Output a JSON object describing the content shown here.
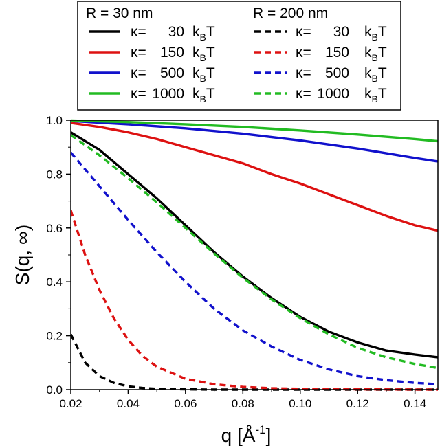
{
  "chart_data": {
    "type": "line",
    "xlabel": "q [Å",
    "xlabel_sup": "-1",
    "xlabel_close": "]",
    "ylabel": "S(q, ∞)",
    "xlim": [
      0.02,
      0.148
    ],
    "ylim": [
      0.0,
      1.0
    ],
    "xticks": [
      0.02,
      0.04,
      0.06,
      0.08,
      0.1,
      0.12,
      0.14
    ],
    "xtick_labels": [
      "0.02",
      "0.04",
      "0.06",
      "0.08",
      "0.10",
      "0.12",
      "0.14"
    ],
    "yticks": [
      0.0,
      0.2,
      0.4,
      0.6,
      0.8,
      1.0
    ],
    "ytick_labels": [
      "0.0",
      "0.2",
      "0.4",
      "0.6",
      "0.8",
      "1.0"
    ],
    "legend": {
      "placement": "top",
      "groups": [
        {
          "title": "R = 30 nm",
          "style": "solid"
        },
        {
          "title": "R = 200 nm",
          "style": "dashed"
        }
      ],
      "rows": [
        {
          "prefix": "κ=",
          "value": "30",
          "unit_k": "k",
          "unit_sub": "B",
          "unit_t": "T"
        },
        {
          "prefix": "κ=",
          "value": "150",
          "unit_k": "k",
          "unit_sub": "B",
          "unit_t": "T"
        },
        {
          "prefix": "κ=",
          "value": "500",
          "unit_k": "k",
          "unit_sub": "B",
          "unit_t": "T"
        },
        {
          "prefix": "κ=",
          "value": "1000",
          "unit_k": "k",
          "unit_sub": "B",
          "unit_t": "T"
        }
      ]
    },
    "series": [
      {
        "R": "30 nm",
        "kappa": "30",
        "color": "#000000",
        "dash": "solid",
        "x": [
          0.02,
          0.03,
          0.04,
          0.05,
          0.06,
          0.07,
          0.08,
          0.09,
          0.1,
          0.11,
          0.12,
          0.13,
          0.14,
          0.148
        ],
        "y": [
          0.955,
          0.89,
          0.8,
          0.71,
          0.61,
          0.51,
          0.42,
          0.34,
          0.27,
          0.215,
          0.175,
          0.145,
          0.13,
          0.12
        ]
      },
      {
        "R": "30 nm",
        "kappa": "150",
        "color": "#dd1111",
        "dash": "solid",
        "x": [
          0.02,
          0.03,
          0.04,
          0.05,
          0.06,
          0.07,
          0.08,
          0.09,
          0.1,
          0.11,
          0.12,
          0.13,
          0.14,
          0.148
        ],
        "y": [
          0.99,
          0.975,
          0.955,
          0.93,
          0.9,
          0.87,
          0.84,
          0.8,
          0.765,
          0.725,
          0.685,
          0.645,
          0.61,
          0.59
        ]
      },
      {
        "R": "30 nm",
        "kappa": "500",
        "color": "#1111cc",
        "dash": "solid",
        "x": [
          0.02,
          0.04,
          0.06,
          0.08,
          0.1,
          0.12,
          0.14,
          0.148
        ],
        "y": [
          0.997,
          0.985,
          0.97,
          0.95,
          0.925,
          0.895,
          0.86,
          0.847
        ]
      },
      {
        "R": "30 nm",
        "kappa": "1000",
        "color": "#22bb22",
        "dash": "solid",
        "x": [
          0.02,
          0.04,
          0.06,
          0.08,
          0.1,
          0.12,
          0.14,
          0.148
        ],
        "y": [
          0.999,
          0.993,
          0.985,
          0.975,
          0.962,
          0.947,
          0.93,
          0.922
        ]
      },
      {
        "R": "200 nm",
        "kappa": "30",
        "color": "#000000",
        "dash": "dashed",
        "x": [
          0.02,
          0.025,
          0.03,
          0.035,
          0.04,
          0.045,
          0.05,
          0.06,
          0.07,
          0.08,
          0.1,
          0.12,
          0.148
        ],
        "y": [
          0.205,
          0.1,
          0.05,
          0.025,
          0.012,
          0.006,
          0.003,
          0.001,
          0.0,
          0.0,
          0.0,
          0.0,
          0.0
        ]
      },
      {
        "R": "200 nm",
        "kappa": "150",
        "color": "#dd1111",
        "dash": "dashed",
        "x": [
          0.02,
          0.025,
          0.03,
          0.035,
          0.04,
          0.045,
          0.05,
          0.06,
          0.07,
          0.08,
          0.09,
          0.1,
          0.12,
          0.148
        ],
        "y": [
          0.665,
          0.5,
          0.37,
          0.265,
          0.185,
          0.125,
          0.085,
          0.04,
          0.02,
          0.01,
          0.005,
          0.003,
          0.001,
          0.0
        ]
      },
      {
        "R": "200 nm",
        "kappa": "500",
        "color": "#1111cc",
        "dash": "dashed",
        "x": [
          0.02,
          0.03,
          0.04,
          0.05,
          0.06,
          0.07,
          0.08,
          0.09,
          0.1,
          0.11,
          0.12,
          0.13,
          0.14,
          0.148
        ],
        "y": [
          0.88,
          0.755,
          0.63,
          0.51,
          0.4,
          0.3,
          0.22,
          0.16,
          0.11,
          0.075,
          0.05,
          0.035,
          0.025,
          0.02
        ]
      },
      {
        "R": "200 nm",
        "kappa": "1000",
        "color": "#22bb22",
        "dash": "dashed",
        "x": [
          0.02,
          0.03,
          0.04,
          0.05,
          0.06,
          0.07,
          0.08,
          0.09,
          0.1,
          0.11,
          0.12,
          0.13,
          0.14,
          0.148
        ],
        "y": [
          0.945,
          0.87,
          0.785,
          0.695,
          0.6,
          0.505,
          0.415,
          0.335,
          0.265,
          0.205,
          0.155,
          0.12,
          0.095,
          0.08
        ]
      }
    ]
  }
}
